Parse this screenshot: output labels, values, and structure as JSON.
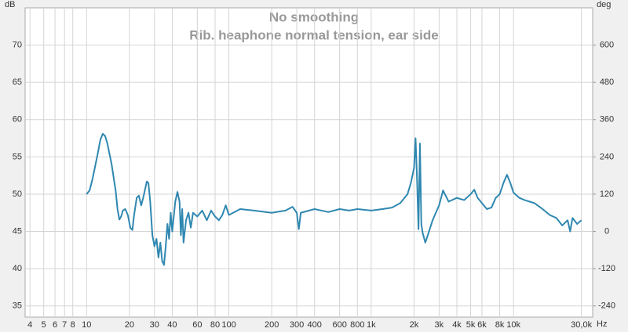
{
  "chart_data": {
    "type": "line",
    "title": "No smoothing",
    "subtitle": "Rib. heaphone normal tension, ear side",
    "y_label": "dB",
    "y2_label": "deg",
    "x_label": "Hz",
    "log_x": true,
    "grid": true,
    "xlim": [
      3.7,
      36000
    ],
    "ylim": [
      33.5,
      75
    ],
    "y2lim": [
      -276,
      720
    ],
    "yticks": [
      35,
      40,
      45,
      50,
      55,
      60,
      65,
      70
    ],
    "y2ticks": [
      -240,
      -120,
      0,
      120,
      240,
      360,
      480,
      600
    ],
    "xticks": [
      4,
      5,
      6,
      7,
      8,
      10,
      20,
      30,
      40,
      60,
      80,
      100,
      200,
      300,
      400,
      600,
      800,
      {
        "value": 1000,
        "label": "1k"
      },
      {
        "value": 2000,
        "label": "2k"
      },
      {
        "value": 3000,
        "label": "3k"
      },
      {
        "value": 4000,
        "label": "4k"
      },
      {
        "value": 5000,
        "label": "5k"
      },
      {
        "value": 6000,
        "label": "6k"
      },
      {
        "value": 8000,
        "label": "8k"
      },
      {
        "value": 10000,
        "label": "10k"
      },
      {
        "value": 30000,
        "label": "30,0k"
      }
    ],
    "series": [
      {
        "color": "#2f88b0",
        "x": [
          10,
          10.5,
          11,
          12,
          12.5,
          13,
          13.5,
          14,
          15,
          16,
          16.5,
          17,
          17.5,
          18,
          18.7,
          19.5,
          20.3,
          21,
          21.5,
          22.5,
          23.3,
          24.2,
          25,
          26.5,
          27.2,
          28,
          29,
          30,
          31,
          32,
          33,
          34,
          35,
          36,
          37,
          38,
          39,
          40,
          42,
          43.5,
          45,
          46,
          47,
          48,
          50,
          52,
          54,
          56,
          60,
          65,
          70,
          75,
          80,
          85,
          90,
          95,
          100,
          120,
          150,
          200,
          250,
          280,
          300,
          310,
          320,
          400,
          500,
          600,
          700,
          800,
          1000,
          1200,
          1400,
          1600,
          1800,
          1900,
          2000,
          2050,
          2100,
          2150,
          2200,
          2250,
          2300,
          2400,
          2500,
          2700,
          3000,
          3200,
          3500,
          4000,
          4500,
          5000,
          5300,
          5600,
          6000,
          6500,
          7000,
          7500,
          8000,
          8500,
          9000,
          9500,
          10000,
          11000,
          12000,
          14000,
          16000,
          18000,
          20000,
          22000,
          24000,
          25000,
          26000,
          28000,
          30000
        ],
        "values": [
          50,
          50.5,
          52,
          55.5,
          57.3,
          58.1,
          57.8,
          56.8,
          54,
          50.5,
          48,
          46.6,
          47,
          47.8,
          48,
          47.2,
          45.5,
          45.2,
          47,
          49.5,
          49.8,
          48.5,
          49.5,
          51.7,
          51.5,
          49,
          44.5,
          43,
          44,
          41.5,
          43.5,
          41,
          40.5,
          43,
          46,
          44,
          47.5,
          45,
          49,
          50.3,
          49,
          44.5,
          48,
          43.5,
          46.5,
          47.5,
          45.5,
          47.5,
          47,
          47.8,
          46.5,
          47.8,
          47,
          46.5,
          47.2,
          48.5,
          47.2,
          48,
          47.8,
          47.5,
          47.8,
          48.3,
          47.5,
          45.3,
          47.5,
          48,
          47.6,
          48,
          47.8,
          48,
          47.8,
          48,
          48.2,
          48.8,
          50,
          51.5,
          53.5,
          57.5,
          52,
          45.3,
          56.8,
          46,
          44.8,
          43.5,
          44.5,
          46.5,
          48.5,
          50.5,
          49,
          49.5,
          49.2,
          50,
          50.6,
          49.5,
          48.8,
          48,
          48.2,
          49.5,
          50,
          51.5,
          52.6,
          51.5,
          50.2,
          49.5,
          49.2,
          48.8,
          48,
          47.2,
          46.8,
          45.8,
          46.5,
          45,
          46.8,
          46,
          46.5
        ]
      }
    ]
  }
}
